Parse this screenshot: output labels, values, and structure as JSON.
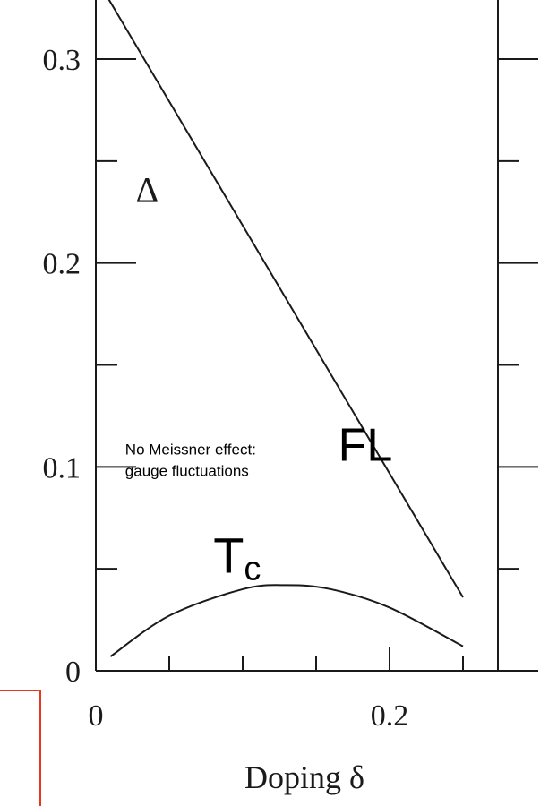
{
  "chart_data": {
    "type": "line",
    "title": "",
    "xlabel": "Doping δ",
    "ylabel": "",
    "xlim": [
      -0.045,
      0.3
    ],
    "ylim": [
      0,
      0.33
    ],
    "x_major_ticks": [
      0,
      0.2
    ],
    "x_major_tick_labels": [
      "0",
      "0.2"
    ],
    "x_minor_ticks": [
      0.05,
      0.1,
      0.15,
      0.25
    ],
    "y_major_ticks": [
      0,
      0.1,
      0.2,
      0.3
    ],
    "y_major_tick_labels": [
      "0",
      "0.1",
      "0.2",
      "0.3"
    ],
    "y_minor_ticks": [
      0.05,
      0.15,
      0.25
    ],
    "grid": false,
    "series": [
      {
        "name": "Δ",
        "x": [
          0.0,
          0.25
        ],
        "y": [
          0.34,
          0.036
        ],
        "color": "#1a1a1a"
      },
      {
        "name": "Tc",
        "x": [
          0.01,
          0.05,
          0.1,
          0.13,
          0.16,
          0.2,
          0.25
        ],
        "y": [
          0.007,
          0.027,
          0.04,
          0.042,
          0.04,
          0.031,
          0.012
        ],
        "color": "#1a1a1a"
      }
    ],
    "annotations": [
      {
        "text": "Δ",
        "x": 0.035,
        "y": 0.23
      },
      {
        "text": "T",
        "subscript": "c",
        "x": 0.08,
        "y": 0.048
      },
      {
        "text": "FL",
        "x": 0.165,
        "y": 0.103
      },
      {
        "lines": [
          "No Meissner effect:",
          "gauge fluctuations"
        ],
        "x": 0.02,
        "y": 0.106
      }
    ],
    "colors": {
      "ink": "#1a1a1a",
      "frame_accent": "#e8381f"
    }
  }
}
